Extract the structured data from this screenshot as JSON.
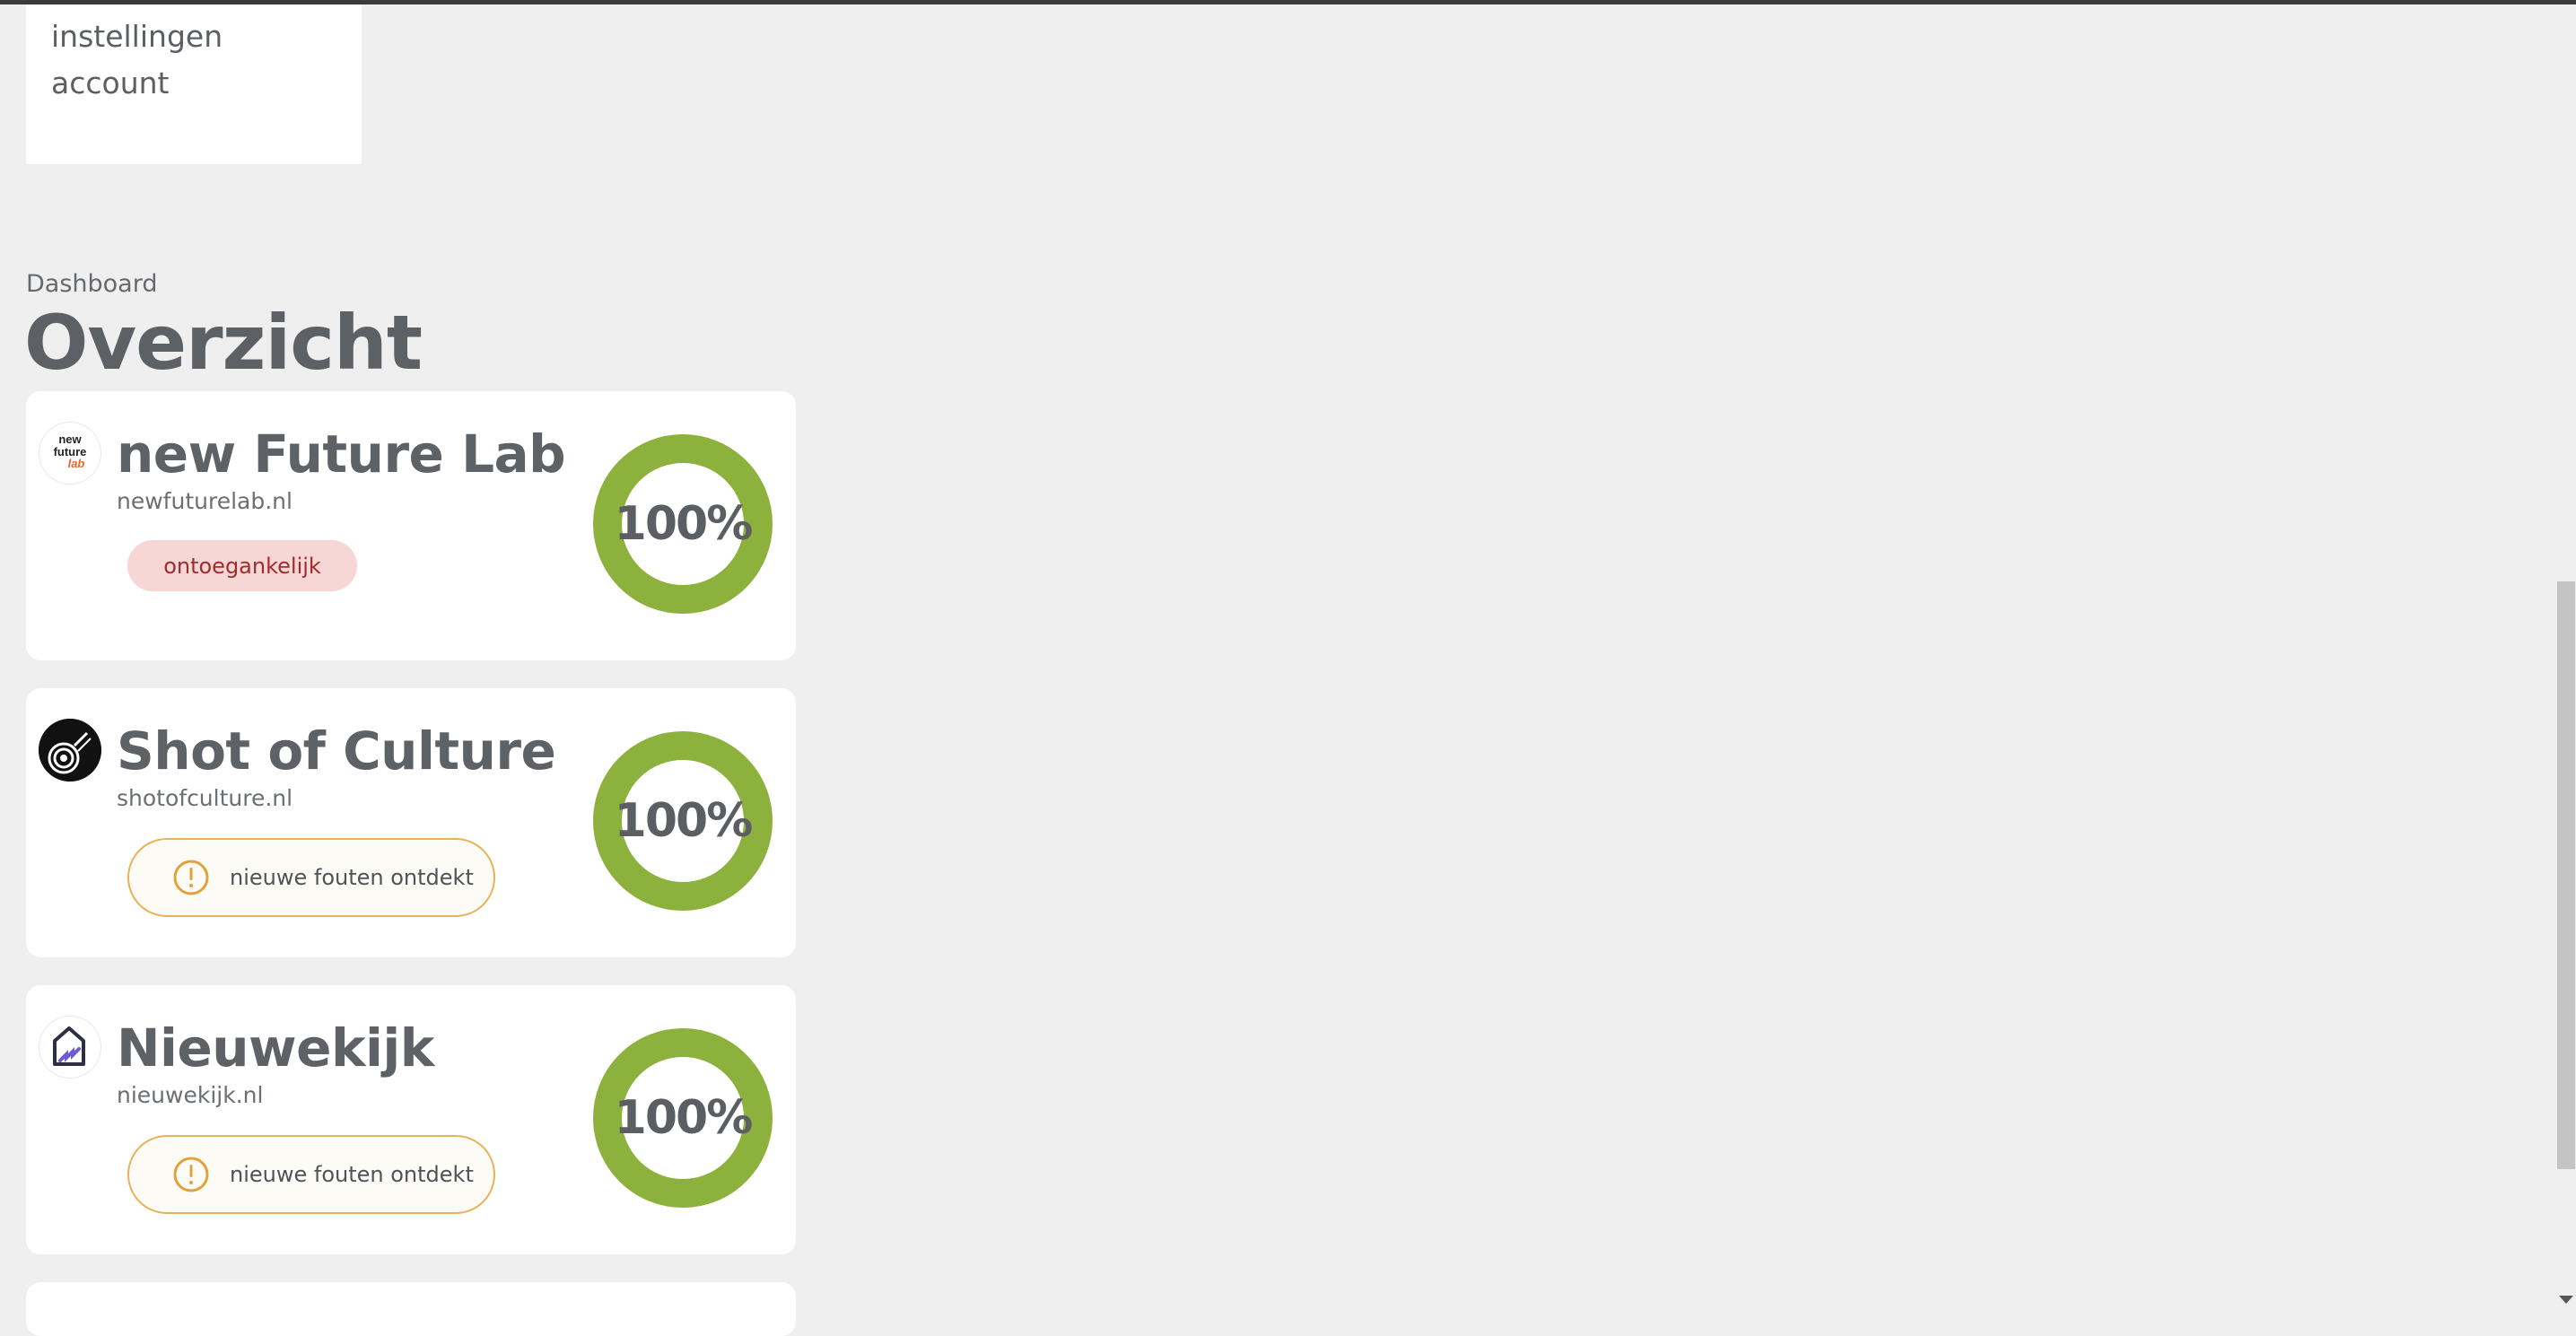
{
  "menu": {
    "items": [
      {
        "label": "instellingen"
      },
      {
        "label": "account"
      }
    ]
  },
  "breadcrumb": "Dashboard",
  "page_title": "Overzicht",
  "colors": {
    "ring": "#8db13d",
    "inaccessible_bg": "#f7d6d6",
    "inaccessible_text": "#a12c2c",
    "warning_border": "#e6b35a"
  },
  "sites": [
    {
      "name": "new Future Lab",
      "url": "newfuturelab.nl",
      "score": "100%",
      "score_fraction": 1.0,
      "status": "ontoegankelijk",
      "logo_icon": "new-future-lab-logo",
      "logo_text": [
        "new",
        "future",
        "lab"
      ]
    },
    {
      "name": "Shot of Culture",
      "url": "shotofculture.nl",
      "score": "100%",
      "score_fraction": 1.0,
      "status": "nieuwe fouten ontdekt",
      "status_icon": "exclamation-circle-icon",
      "logo_icon": "shot-of-culture-logo"
    },
    {
      "name": "Nieuwekijk",
      "url": "nieuwekijk.nl",
      "score": "100%",
      "score_fraction": 1.0,
      "status": "nieuwe fouten ontdekt",
      "status_icon": "exclamation-circle-icon",
      "logo_icon": "nieuwekijk-house-logo"
    }
  ]
}
